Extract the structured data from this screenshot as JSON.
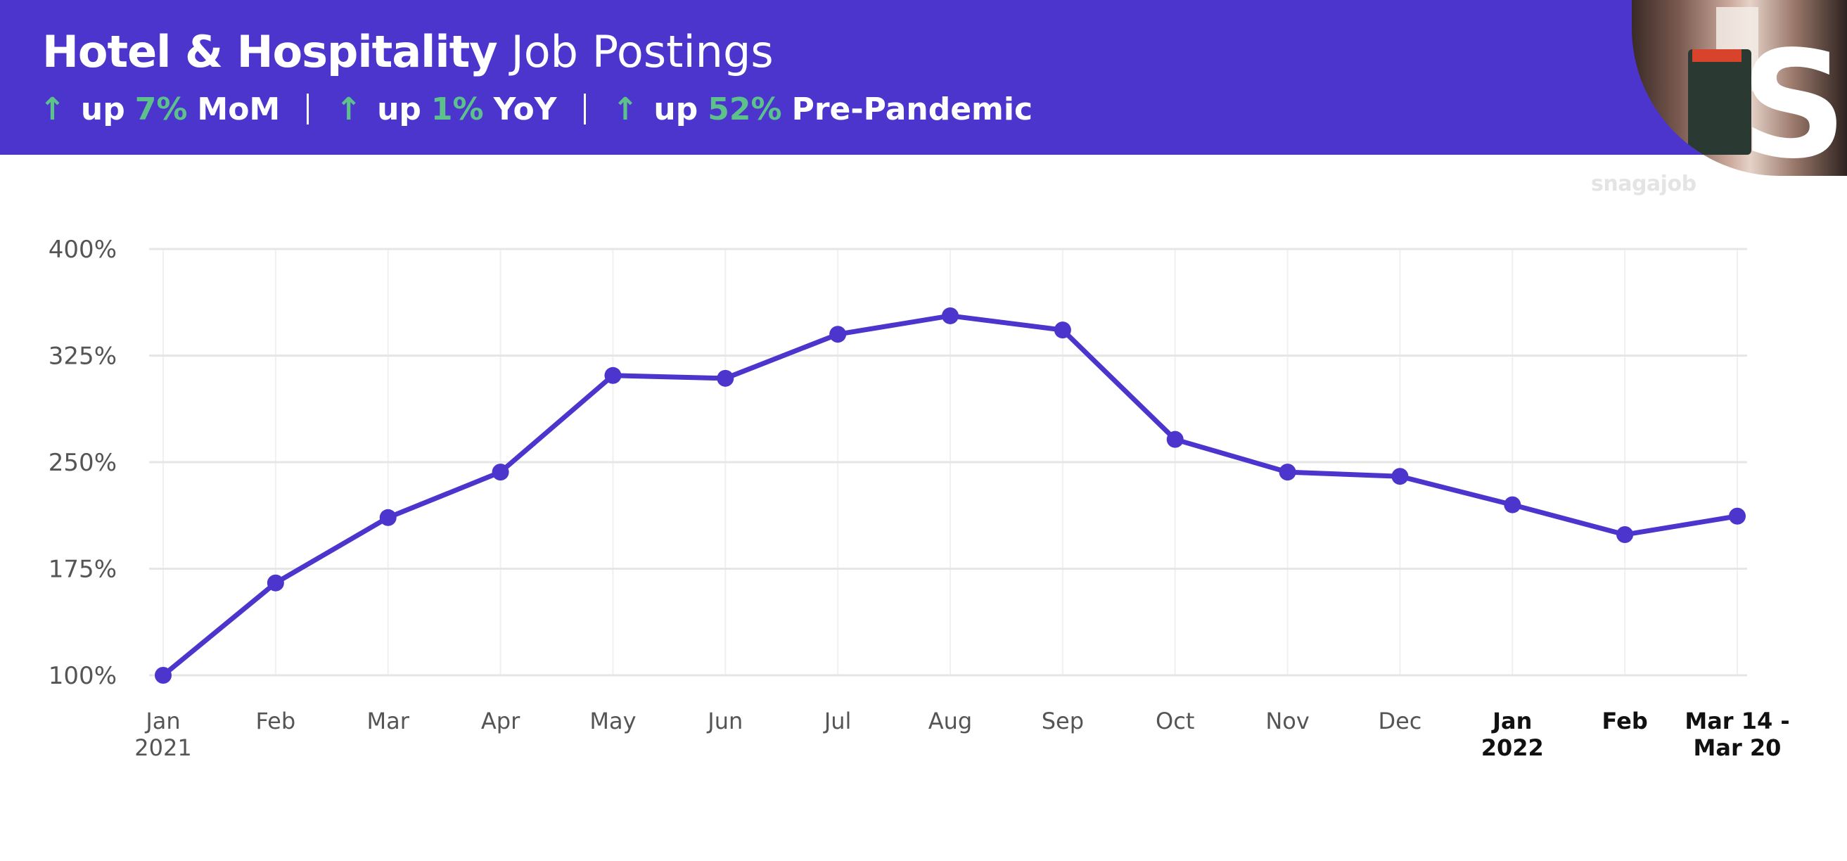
{
  "header": {
    "title_bold": "Hotel & Hospitality",
    "title_light": "Job Postings",
    "stats": [
      {
        "arrow": "↑",
        "prefix": "up",
        "value": "7%",
        "suffix": "MoM"
      },
      {
        "arrow": "↑",
        "prefix": "up",
        "value": "1%",
        "suffix": "YoY"
      },
      {
        "arrow": "↑",
        "prefix": "up",
        "value": "52%",
        "suffix": "Pre-Pandemic"
      }
    ]
  },
  "brand": "snagajob",
  "colors": {
    "header_bg": "#4b35cc",
    "accent_green": "#5cc18b",
    "line": "#4b35cc",
    "grid": "#e6e6e6",
    "tick_text": "#555555",
    "tick_text_2022": "#111111"
  },
  "chart_data": {
    "type": "line",
    "title": "",
    "xlabel": "",
    "ylabel": "",
    "ylim": [
      100,
      400
    ],
    "yticks": [
      100,
      175,
      250,
      325,
      400
    ],
    "ytick_labels": [
      "100%",
      "175%",
      "250%",
      "325%",
      "400%"
    ],
    "grid": true,
    "categories": [
      [
        "Jan",
        "2021"
      ],
      [
        "Feb"
      ],
      [
        "Mar"
      ],
      [
        "Apr"
      ],
      [
        "May"
      ],
      [
        "Jun"
      ],
      [
        "Jul"
      ],
      [
        "Aug"
      ],
      [
        "Sep"
      ],
      [
        "Oct"
      ],
      [
        "Nov"
      ],
      [
        "Dec"
      ],
      [
        "Jan",
        "2022"
      ],
      [
        "Feb"
      ],
      [
        "Mar 14 -",
        "Mar 20"
      ]
    ],
    "series": [
      {
        "values": [
          100,
          165,
          211,
          243,
          311,
          309,
          340,
          353,
          343,
          266,
          243,
          240,
          220,
          199,
          212
        ]
      }
    ]
  }
}
